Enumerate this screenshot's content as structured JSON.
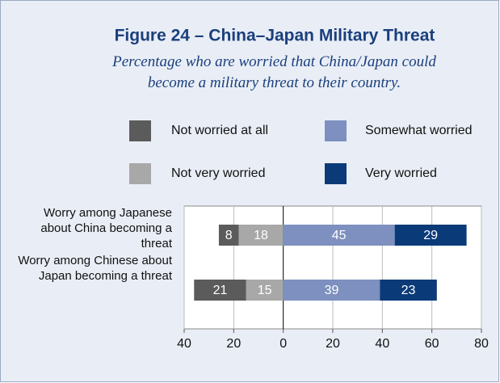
{
  "chart_data": {
    "type": "diverging-bar",
    "title": "Figure 24 – China–Japan Military Threat",
    "subtitle": "Percentage who are worried that China/Japan could become a military threat to their country.",
    "categories": [
      "Worry among Japanese about China becoming a threat",
      "Worry among Chinese about Japan becoming a threat"
    ],
    "series": [
      {
        "name": "Not worried at all",
        "color": "#5b5b5b",
        "values": [
          -8,
          -21
        ],
        "value_labels": [
          "8",
          "21"
        ]
      },
      {
        "name": "Not very worried",
        "color": "#a8a8a8",
        "values": [
          -18,
          -15
        ],
        "value_labels": [
          "18",
          "15"
        ]
      },
      {
        "name": "Somewhat worried",
        "color": "#7d90bf",
        "values": [
          45,
          39
        ]
      },
      {
        "name": "Very worried",
        "color": "#0b3a78",
        "values": [
          29,
          23
        ]
      }
    ],
    "xlim": [
      -40,
      80
    ],
    "xticks": [
      {
        "value": -40,
        "label": "40"
      },
      {
        "value": -20,
        "label": "20"
      },
      0,
      20,
      40,
      60,
      80
    ],
    "grid": true
  }
}
